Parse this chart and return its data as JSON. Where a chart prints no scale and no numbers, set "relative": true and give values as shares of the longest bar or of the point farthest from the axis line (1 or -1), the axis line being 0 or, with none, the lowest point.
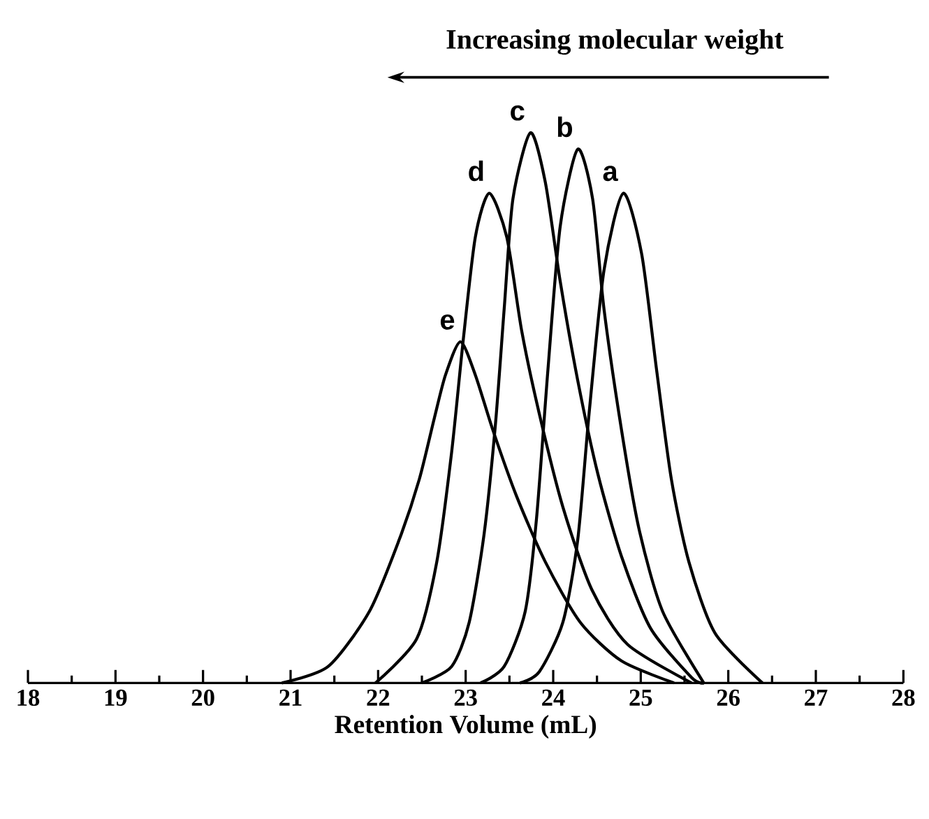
{
  "chart_data": {
    "type": "line",
    "title": "Increasing molecular weight",
    "xlabel": "Retention Volume (mL)",
    "relative": true,
    "xlim": [
      18,
      28
    ],
    "xticks": [
      18,
      19,
      20,
      21,
      22,
      23,
      24,
      25,
      26,
      27,
      28
    ],
    "legend": false,
    "marker": "none",
    "line_style": "solid",
    "grid": false,
    "tick_labels": "x",
    "series": [
      {
        "name": "a",
        "color": "#000000",
        "x": [
          23.62,
          23.84,
          24.11,
          24.28,
          24.41,
          24.58,
          24.8,
          25.01,
          25.18,
          25.35,
          25.55,
          25.85,
          26.39
        ],
        "values": [
          0,
          0.02,
          0.11,
          0.26,
          0.49,
          0.75,
          0.89,
          0.78,
          0.57,
          0.37,
          0.22,
          0.09,
          0
        ]
      },
      {
        "name": "b",
        "color": "#000000",
        "x": [
          23.17,
          23.44,
          23.68,
          23.81,
          23.94,
          24.08,
          24.28,
          24.45,
          24.58,
          24.78,
          24.98,
          25.25,
          25.72
        ],
        "values": [
          0,
          0.03,
          0.13,
          0.3,
          0.57,
          0.83,
          0.97,
          0.88,
          0.68,
          0.46,
          0.28,
          0.13,
          0
        ]
      },
      {
        "name": "c",
        "color": "#000000",
        "x": [
          22.5,
          22.84,
          23.04,
          23.21,
          23.34,
          23.44,
          23.54,
          23.74,
          23.91,
          24.08,
          24.28,
          24.51,
          24.78,
          25.11,
          25.58,
          25.72
        ],
        "values": [
          0,
          0.03,
          0.11,
          0.27,
          0.47,
          0.68,
          0.88,
          1,
          0.91,
          0.73,
          0.55,
          0.38,
          0.23,
          0.1,
          0.01,
          0
        ]
      },
      {
        "name": "d",
        "color": "#000000",
        "x": [
          21.97,
          22.44,
          22.67,
          22.84,
          22.97,
          23.11,
          23.27,
          23.47,
          23.64,
          23.84,
          24.11,
          24.44,
          24.85,
          25.58
        ],
        "values": [
          0,
          0.08,
          0.22,
          0.42,
          0.62,
          0.81,
          0.89,
          0.81,
          0.64,
          0.49,
          0.32,
          0.17,
          0.07,
          0
        ]
      },
      {
        "name": "e",
        "color": "#000000",
        "x": [
          20.9,
          21.43,
          21.9,
          22.24,
          22.47,
          22.64,
          22.77,
          22.94,
          23.11,
          23.31,
          23.58,
          23.91,
          24.31,
          24.78,
          25.38
        ],
        "values": [
          0,
          0.03,
          0.13,
          0.26,
          0.37,
          0.48,
          0.56,
          0.62,
          0.56,
          0.46,
          0.34,
          0.22,
          0.11,
          0.04,
          0
        ]
      }
    ]
  }
}
